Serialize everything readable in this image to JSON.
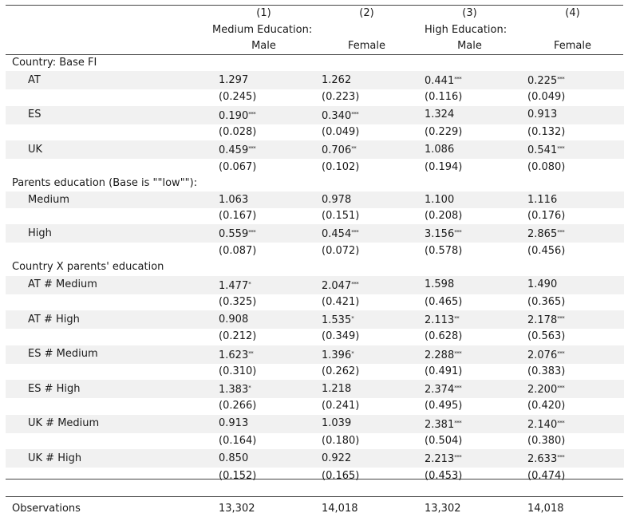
{
  "header": {
    "col_numbers": [
      "(1)",
      "(2)",
      "(3)",
      "(4)"
    ],
    "group_labels": [
      "Medium Education:",
      "High Education:"
    ],
    "gender_labels": [
      "Male",
      "Female",
      "Male",
      "Female"
    ]
  },
  "rows": [
    {
      "kind": "section",
      "label": "Country: Base FI"
    },
    {
      "kind": "coef",
      "label": "AT",
      "values": [
        [
          "1.297",
          ""
        ],
        [
          "1.262",
          ""
        ],
        [
          "0.441",
          "***"
        ],
        [
          "0.225",
          "***"
        ]
      ]
    },
    {
      "kind": "se",
      "values": [
        "(0.245)",
        "(0.223)",
        "(0.116)",
        "(0.049)"
      ]
    },
    {
      "kind": "coef",
      "label": "ES",
      "values": [
        [
          "0.190",
          "***"
        ],
        [
          "0.340",
          "***"
        ],
        [
          "1.324",
          ""
        ],
        [
          "0.913",
          ""
        ]
      ]
    },
    {
      "kind": "se",
      "values": [
        "(0.028)",
        "(0.049)",
        "(0.229)",
        "(0.132)"
      ]
    },
    {
      "kind": "coef",
      "label": "UK",
      "values": [
        [
          "0.459",
          "***"
        ],
        [
          "0.706",
          "**"
        ],
        [
          "1.086",
          ""
        ],
        [
          "0.541",
          "***"
        ]
      ]
    },
    {
      "kind": "se",
      "values": [
        "(0.067)",
        "(0.102)",
        "(0.194)",
        "(0.080)"
      ]
    },
    {
      "kind": "section",
      "label": "Parents education (Base is \"\"low\"\"):"
    },
    {
      "kind": "coef",
      "label": "Medium",
      "values": [
        [
          "1.063",
          ""
        ],
        [
          "0.978",
          ""
        ],
        [
          "1.100",
          ""
        ],
        [
          "1.116",
          ""
        ]
      ]
    },
    {
      "kind": "se",
      "values": [
        "(0.167)",
        "(0.151)",
        "(0.208)",
        "(0.176)"
      ]
    },
    {
      "kind": "coef",
      "label": "High",
      "values": [
        [
          "0.559",
          "***"
        ],
        [
          "0.454",
          "***"
        ],
        [
          "3.156",
          "***"
        ],
        [
          "2.865",
          "***"
        ]
      ]
    },
    {
      "kind": "se",
      "values": [
        "(0.087)",
        "(0.072)",
        "(0.578)",
        "(0.456)"
      ]
    },
    {
      "kind": "section",
      "label": "Country X parents' education"
    },
    {
      "kind": "coef",
      "label": "AT # Medium",
      "values": [
        [
          "1.477",
          "*"
        ],
        [
          "2.047",
          "***"
        ],
        [
          "1.598",
          ""
        ],
        [
          "1.490",
          ""
        ]
      ]
    },
    {
      "kind": "se",
      "values": [
        "(0.325)",
        "(0.421)",
        "(0.465)",
        "(0.365)"
      ]
    },
    {
      "kind": "coef",
      "label": "AT # High",
      "values": [
        [
          "0.908",
          ""
        ],
        [
          "1.535",
          "*"
        ],
        [
          "2.113",
          "**"
        ],
        [
          "2.178",
          "***"
        ]
      ]
    },
    {
      "kind": "se",
      "values": [
        "(0.212)",
        "(0.349)",
        "(0.628)",
        "(0.563)"
      ]
    },
    {
      "kind": "coef",
      "label": "ES # Medium",
      "values": [
        [
          "1.623",
          "**"
        ],
        [
          "1.396",
          "*"
        ],
        [
          "2.288",
          "***"
        ],
        [
          "2.076",
          "***"
        ]
      ]
    },
    {
      "kind": "se",
      "values": [
        "(0.310)",
        "(0.262)",
        "(0.491)",
        "(0.383)"
      ]
    },
    {
      "kind": "coef",
      "label": "ES # High",
      "values": [
        [
          "1.383",
          "*"
        ],
        [
          "1.218",
          ""
        ],
        [
          "2.374",
          "***"
        ],
        [
          "2.200",
          "***"
        ]
      ]
    },
    {
      "kind": "se",
      "values": [
        "(0.266)",
        "(0.241)",
        "(0.495)",
        "(0.420)"
      ]
    },
    {
      "kind": "coef",
      "label": "UK # Medium",
      "values": [
        [
          "0.913",
          ""
        ],
        [
          "1.039",
          ""
        ],
        [
          "2.381",
          "***"
        ],
        [
          "2.140",
          "***"
        ]
      ]
    },
    {
      "kind": "se",
      "values": [
        "(0.164)",
        "(0.180)",
        "(0.504)",
        "(0.380)"
      ]
    },
    {
      "kind": "coef",
      "label": "UK # High",
      "values": [
        [
          "0.850",
          ""
        ],
        [
          "0.922",
          ""
        ],
        [
          "2.213",
          "***"
        ],
        [
          "2.633",
          "***"
        ]
      ]
    },
    {
      "kind": "se",
      "values": [
        "(0.152)",
        "(0.165)",
        "(0.453)",
        "(0.474)"
      ]
    },
    {
      "kind": "blank"
    },
    {
      "kind": "obs",
      "label": "Observations",
      "values": [
        "13,302",
        "14,018",
        "13,302",
        "14,018"
      ]
    }
  ]
}
